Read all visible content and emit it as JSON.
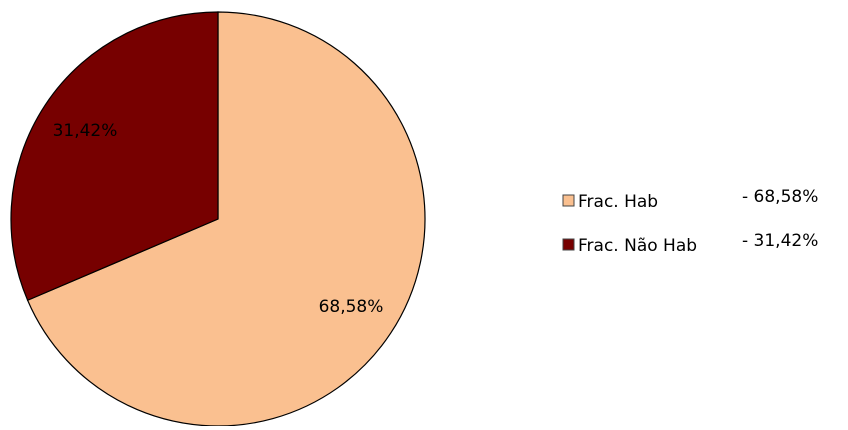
{
  "chart_data": {
    "type": "pie",
    "categories": [
      "Frac. Hab",
      "Frac. Não Hab"
    ],
    "values": [
      68.58,
      31.42
    ],
    "value_labels": [
      "68,58%",
      "31,42%"
    ],
    "legend_labels": [
      "- 68,58%",
      "- 31,42%"
    ],
    "colors": [
      "#fac090",
      "#770000"
    ]
  }
}
